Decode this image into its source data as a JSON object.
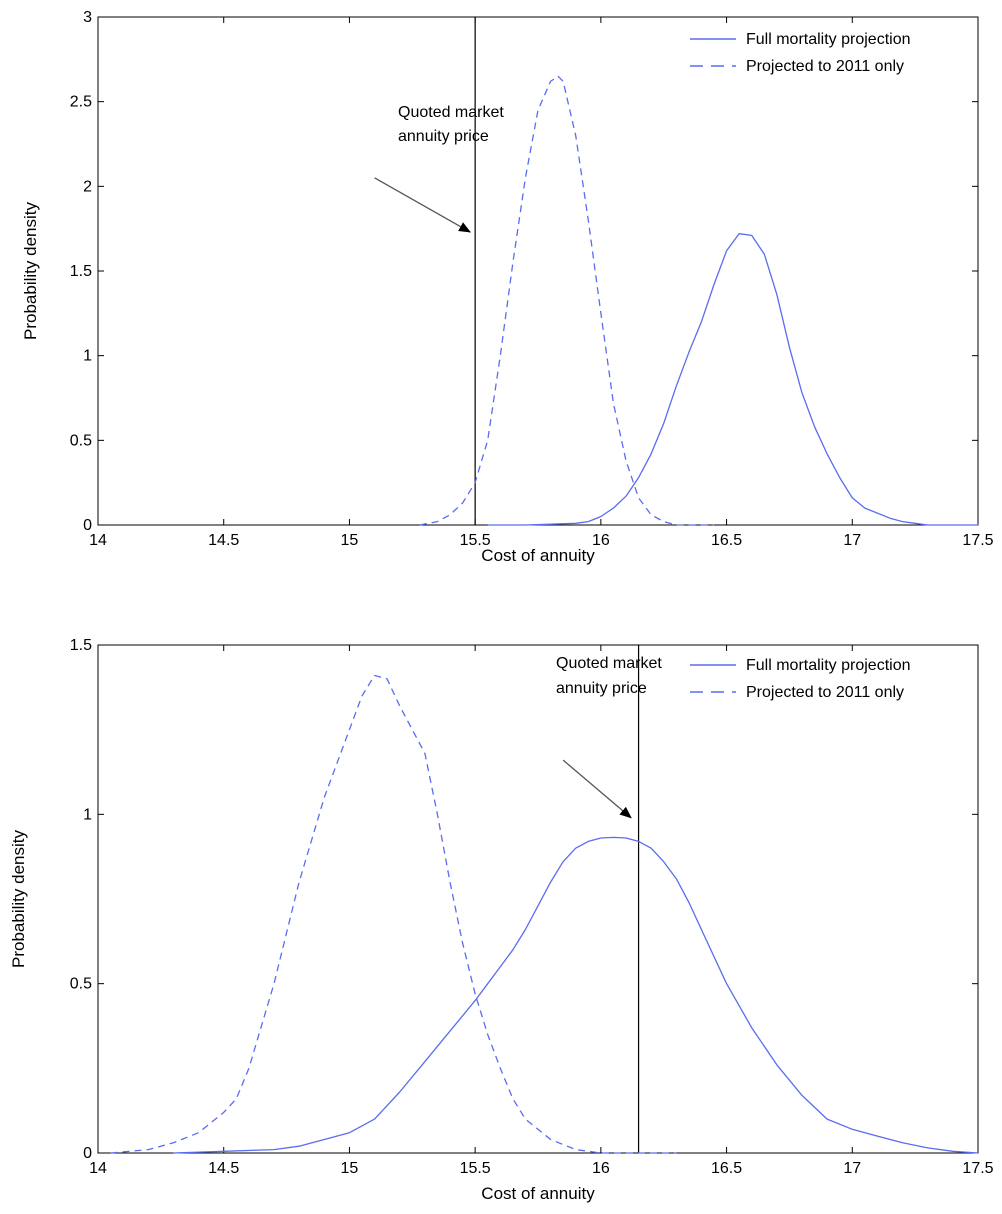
{
  "chart_data": [
    {
      "type": "line",
      "xlabel": "Cost of annuity",
      "ylabel": "Probability density",
      "xlim": [
        14,
        17.5
      ],
      "ylim": [
        0,
        3
      ],
      "xticks": [
        "14",
        "14.5",
        "15",
        "15.5",
        "16",
        "16.5",
        "17",
        "17.5"
      ],
      "yticks": [
        "0",
        "0.5",
        "1",
        "1.5",
        "2",
        "2.5",
        "3"
      ],
      "grid": false,
      "legend_position": "top-right",
      "marker_line_x": 15.5,
      "annotation": {
        "lines": [
          "Quoted market",
          "annuity price"
        ],
        "arrow_from": [
          15.1,
          2.05
        ],
        "arrow_to": [
          15.48,
          1.73
        ]
      },
      "series": [
        {
          "name": "Full mortality projection",
          "style": "solid",
          "color": "#5a6cf0",
          "x": [
            15.55,
            15.7,
            15.8,
            15.9,
            15.95,
            16.0,
            16.05,
            16.1,
            16.15,
            16.2,
            16.25,
            16.3,
            16.35,
            16.4,
            16.45,
            16.5,
            16.55,
            16.6,
            16.65,
            16.7,
            16.75,
            16.8,
            16.85,
            16.9,
            16.95,
            17.0,
            17.05,
            17.1,
            17.15,
            17.2,
            17.25,
            17.3,
            17.35,
            17.4,
            17.5
          ],
          "y": [
            0.0,
            0.0,
            0.005,
            0.01,
            0.02,
            0.05,
            0.1,
            0.17,
            0.28,
            0.42,
            0.6,
            0.82,
            1.02,
            1.2,
            1.42,
            1.62,
            1.72,
            1.71,
            1.6,
            1.36,
            1.05,
            0.78,
            0.58,
            0.42,
            0.28,
            0.16,
            0.1,
            0.07,
            0.04,
            0.02,
            0.01,
            0.0,
            0.0,
            0.0,
            0.0
          ]
        },
        {
          "name": "Projected to 2011 only",
          "style": "dashed",
          "color": "#5a6cf0",
          "x": [
            15.28,
            15.35,
            15.4,
            15.45,
            15.5,
            15.55,
            15.6,
            15.65,
            15.7,
            15.75,
            15.8,
            15.83,
            15.85,
            15.9,
            15.95,
            16.0,
            16.05,
            16.1,
            16.15,
            16.2,
            16.25,
            16.3,
            16.35,
            16.4,
            16.45
          ],
          "y": [
            0.0,
            0.02,
            0.06,
            0.13,
            0.25,
            0.5,
            1.0,
            1.55,
            2.05,
            2.45,
            2.62,
            2.65,
            2.62,
            2.3,
            1.8,
            1.25,
            0.72,
            0.38,
            0.16,
            0.06,
            0.02,
            0.0,
            0.0,
            0.0,
            0.0
          ]
        }
      ]
    },
    {
      "type": "line",
      "xlabel": "Cost of annuity",
      "ylabel": "Probability density",
      "xlim": [
        14,
        17.5
      ],
      "ylim": [
        0,
        1.5
      ],
      "xticks": [
        "14",
        "14.5",
        "15",
        "15.5",
        "16",
        "16.5",
        "17",
        "17.5"
      ],
      "yticks": [
        "0",
        "0.5",
        "1",
        "1.5"
      ],
      "grid": false,
      "legend_position": "top-right",
      "marker_line_x": 16.15,
      "annotation": {
        "lines": [
          "Quoted market",
          "annuity price"
        ],
        "arrow_from": [
          15.85,
          1.16
        ],
        "arrow_to": [
          16.12,
          0.99
        ]
      },
      "series": [
        {
          "name": "Full mortality projection",
          "style": "solid",
          "color": "#5a6cf0",
          "x": [
            14.3,
            14.5,
            14.7,
            14.8,
            14.9,
            15.0,
            15.1,
            15.2,
            15.3,
            15.4,
            15.5,
            15.55,
            15.6,
            15.65,
            15.7,
            15.75,
            15.8,
            15.85,
            15.9,
            15.95,
            16.0,
            16.05,
            16.1,
            16.15,
            16.2,
            16.25,
            16.3,
            16.35,
            16.4,
            16.45,
            16.5,
            16.6,
            16.7,
            16.8,
            16.9,
            17.0,
            17.1,
            17.2,
            17.3,
            17.4,
            17.5
          ],
          "y": [
            0.0,
            0.005,
            0.01,
            0.02,
            0.04,
            0.06,
            0.1,
            0.18,
            0.27,
            0.36,
            0.45,
            0.5,
            0.55,
            0.6,
            0.66,
            0.73,
            0.8,
            0.86,
            0.9,
            0.92,
            0.93,
            0.932,
            0.93,
            0.92,
            0.9,
            0.86,
            0.81,
            0.74,
            0.66,
            0.58,
            0.5,
            0.37,
            0.26,
            0.17,
            0.1,
            0.07,
            0.05,
            0.03,
            0.015,
            0.005,
            0.0
          ]
        },
        {
          "name": "Projected to 2011 only",
          "style": "dashed",
          "color": "#5a6cf0",
          "x": [
            14.05,
            14.2,
            14.3,
            14.4,
            14.5,
            14.55,
            14.6,
            14.7,
            14.8,
            14.9,
            15.0,
            15.05,
            15.1,
            15.15,
            15.2,
            15.25,
            15.3,
            15.35,
            15.4,
            15.45,
            15.5,
            15.55,
            15.6,
            15.65,
            15.7,
            15.8,
            15.9,
            16.0,
            16.1,
            16.2,
            16.3
          ],
          "y": [
            0.0,
            0.01,
            0.03,
            0.06,
            0.12,
            0.16,
            0.25,
            0.5,
            0.8,
            1.05,
            1.25,
            1.35,
            1.41,
            1.4,
            1.32,
            1.25,
            1.18,
            1.0,
            0.8,
            0.62,
            0.47,
            0.35,
            0.25,
            0.16,
            0.1,
            0.04,
            0.01,
            0.0,
            0.0,
            0.0,
            0.0
          ]
        }
      ]
    }
  ]
}
